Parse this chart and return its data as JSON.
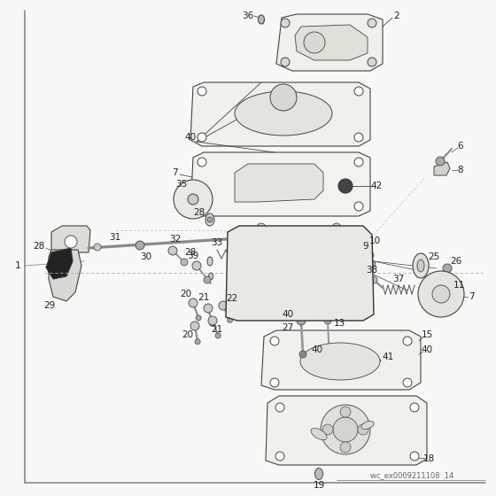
{
  "doc_ref": "wc_ex0009211108  14",
  "bg": "#f8f8f6",
  "lc": "#444444",
  "tc": "#222222",
  "gc": "#888888",
  "figsize": [
    5.6,
    5.6
  ],
  "dpi": 100
}
